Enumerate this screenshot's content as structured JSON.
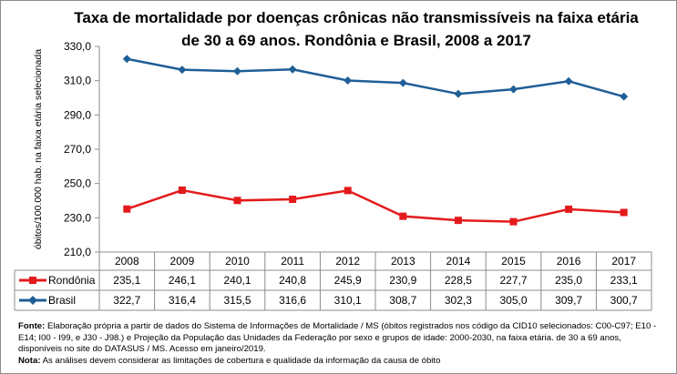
{
  "chart_data": {
    "type": "line",
    "title_line1": "Taxa de mortalidade por doenças crônicas não transmissíveis na faixa etária",
    "title_line2": "de 30 a 69 anos. Rondônia e Brasil, 2008 a 2017",
    "ylabel": "óbitos/100.000 hab. na faixa etária selecionada",
    "xlabel": "",
    "ylim": [
      210,
      330
    ],
    "yticks": [
      "210,0",
      "230,0",
      "250,0",
      "270,0",
      "290,0",
      "310,0",
      "330,0"
    ],
    "categories": [
      "2008",
      "2009",
      "2010",
      "2011",
      "2012",
      "2013",
      "2014",
      "2015",
      "2016",
      "2017"
    ],
    "grid": false,
    "legend": "data-table",
    "series": [
      {
        "name": "Rondônia",
        "color": "#e31a1c",
        "marker": "square",
        "values": [
          235.1,
          246.1,
          240.1,
          240.8,
          245.9,
          230.9,
          228.5,
          227.7,
          235.0,
          233.1
        ],
        "labels": [
          "235,1",
          "246,1",
          "240,1",
          "240,8",
          "245,9",
          "230,9",
          "228,5",
          "227,7",
          "235,0",
          "233,1"
        ]
      },
      {
        "name": "Brasil",
        "color": "#1f5f96",
        "marker": "diamond",
        "values": [
          322.7,
          316.4,
          315.5,
          316.6,
          310.1,
          308.7,
          302.3,
          305.0,
          309.7,
          300.7
        ],
        "labels": [
          "322,7",
          "316,4",
          "315,5",
          "316,6",
          "310,1",
          "308,7",
          "302,3",
          "305,0",
          "309,7",
          "300,7"
        ]
      }
    ]
  },
  "notes": {
    "fonte_label": "Fonte:",
    "fonte_text": " Elaboração própria a partir de dados do Sistema de Informações de Mortalidade / MS (óbitos registrados nos código da CID10 selecionados: C00-C97; E10 - E14; I00 - I99, e J30 - J98.) e Projeção da População das Unidades da Federação por sexo e grupos de idade: 2000-2030, na faixa etária. de 30 a 69 anos, disponíveis no site do DATASUS / MS.  Acesso em janeiro/2019.",
    "nota_label": "Nota:",
    "nota_text": "  As análises devem considerar as limitações de cobertura e qualidade da informação da causa de óbito"
  }
}
